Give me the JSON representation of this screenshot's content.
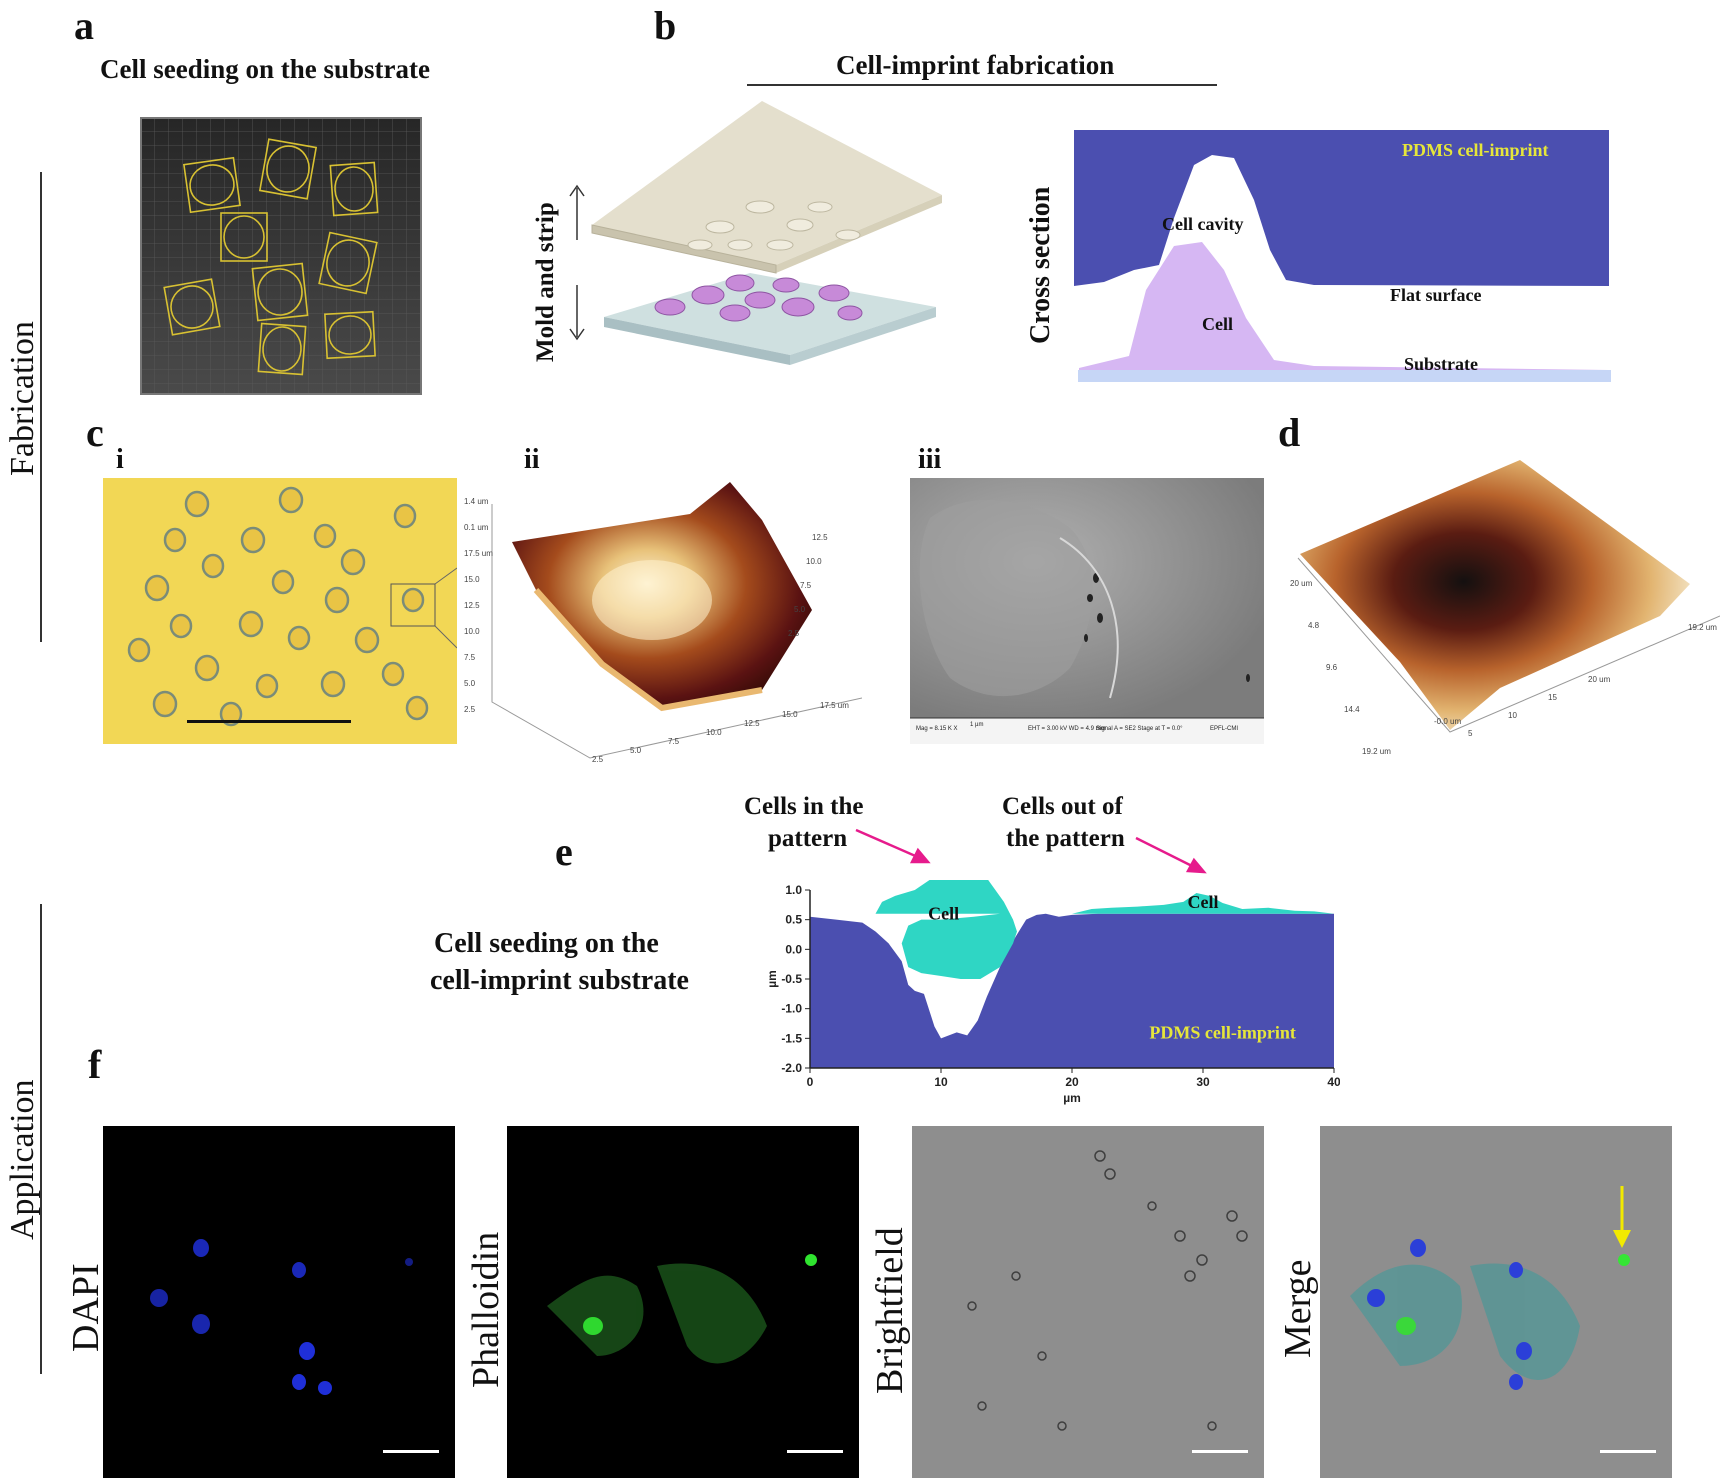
{
  "panel_labels": {
    "a": "a",
    "b": "b",
    "c": "c",
    "d": "d",
    "e": "e",
    "f": "f"
  },
  "sub_labels": {
    "i": "i",
    "ii": "ii",
    "iii": "iii"
  },
  "side_labels": {
    "fabrication": "Fabrication",
    "application": "Application"
  },
  "panel_a": {
    "title": "Cell seeding on the substrate"
  },
  "panel_b": {
    "title": "Cell-imprint fabrication",
    "mold_label": "Mold and strip",
    "cross_section": {
      "side_label": "Cross section",
      "pdms": "PDMS cell-imprint",
      "cell_cavity": "Cell cavity",
      "flat_surface": "Flat surface",
      "cell": "Cell",
      "substrate": "Substrate"
    }
  },
  "panel_c_ii_ticks": {
    "left": [
      "1.4 um",
      "0.1 um",
      "17.5 um",
      "15.0",
      "12.5",
      "10.0",
      "7.5",
      "5.0",
      "2.5"
    ],
    "bottom": [
      "2.5",
      "5.0",
      "7.5",
      "10.0",
      "12.5",
      "15.0",
      "17.5 um"
    ],
    "right": [
      "12.5",
      "10.0",
      "7.5",
      "5.0",
      "2.5"
    ]
  },
  "panel_d_ticks": {
    "left": [
      "20 um",
      "4.8",
      "9.6",
      "14.4",
      "19.2 um"
    ],
    "bottom": [
      "5",
      "10",
      "15",
      "20 um"
    ],
    "right": [
      "19.2 um"
    ],
    "zero": "-0.0 um"
  },
  "sem_info": {
    "line1": "Mag = 8.15 K X",
    "line2": "1 µm",
    "line3": "EHT = 3.00 kV  WD = 4.9 mm",
    "line4": "Signal A = SE2  Stage at T = 0.0°",
    "line5": "EPFL-CMI"
  },
  "panel_e": {
    "title_line1": "Cell seeding on the",
    "title_line2": "cell-imprint substrate",
    "callout_in_line1": "Cells in the",
    "callout_in_line2": "pattern",
    "callout_out_line1": "Cells out of",
    "callout_out_line2": "the pattern",
    "cell_label": "Cell",
    "pdms": "PDMS cell-imprint",
    "xlabel": "µm",
    "ylabel": "µm",
    "colors": {
      "pdms": "#4b4fb0",
      "cell": "#2fd6c4",
      "arrow": "#e61b8c",
      "pdms_text": "#e6e63a"
    }
  },
  "chart_data": {
    "type": "area",
    "title": "",
    "xlabel": "µm",
    "ylabel": "µm",
    "xlim": [
      0,
      40
    ],
    "ylim": [
      -2.0,
      1.0
    ],
    "x_ticks": [
      0,
      10,
      20,
      30,
      40
    ],
    "y_ticks": [
      1.0,
      0.5,
      0.0,
      -0.5,
      -1.0,
      -1.5,
      -2.0
    ],
    "x_tick_labels": [
      "0",
      "10",
      "20",
      "30",
      "40"
    ],
    "y_tick_labels": [
      "1.0",
      "0.5",
      "0.0",
      "-0.5",
      "-1.0",
      "-1.5",
      "-2.0"
    ],
    "series": [
      {
        "name": "PDMS cell-imprint",
        "color": "#4b4fb0",
        "x": [
          0,
          2,
          4,
          5,
          6,
          7,
          7.5,
          8,
          8.7,
          9.5,
          10,
          10.6,
          11.2,
          12,
          12.8,
          13.5,
          14.2,
          15,
          15.8,
          16.5,
          17.3,
          18,
          19,
          20,
          22,
          25,
          28,
          30,
          33,
          36,
          40
        ],
        "values": [
          0.55,
          0.5,
          0.45,
          0.3,
          0.1,
          -0.2,
          -0.6,
          -0.7,
          -0.75,
          -1.3,
          -1.5,
          -1.45,
          -1.4,
          -1.45,
          -1.2,
          -0.8,
          -0.45,
          -0.05,
          0.25,
          0.5,
          0.58,
          0.6,
          0.55,
          0.58,
          0.6,
          0.6,
          0.6,
          0.6,
          0.6,
          0.6,
          0.6
        ]
      },
      {
        "name": "Cell",
        "color": "#2fd6c4",
        "x": [
          5,
          5.5,
          6.5,
          8,
          10,
          12,
          13.5,
          14.8,
          15.5,
          15.8,
          15.5,
          14.5,
          13,
          11.5,
          10,
          8.5,
          7.5,
          7,
          7.5,
          8.5,
          10,
          12.5,
          14.5,
          15.5
        ],
        "values": [
          0.6,
          0.8,
          0.9,
          1.0,
          1.3,
          1.3,
          1.2,
          0.8,
          0.5,
          0.3,
          0.1,
          -0.3,
          -0.5,
          -0.5,
          -0.45,
          -0.4,
          -0.3,
          0.1,
          0.4,
          0.5,
          0.5,
          0.55,
          0.6,
          0.6
        ]
      },
      {
        "name": "Cell",
        "color": "#2fd6c4",
        "x": [
          20,
          21.5,
          23,
          25,
          27,
          28.5,
          29.5,
          30.5,
          31.5,
          33,
          35,
          37,
          38.5,
          40
        ],
        "values": [
          0.6,
          0.68,
          0.7,
          0.72,
          0.75,
          0.8,
          0.95,
          0.9,
          0.78,
          0.68,
          0.7,
          0.65,
          0.64,
          0.6
        ]
      }
    ]
  },
  "panel_f": {
    "channels": [
      "DAPI",
      "Phalloidin",
      "Brightfield",
      "Merge"
    ]
  }
}
